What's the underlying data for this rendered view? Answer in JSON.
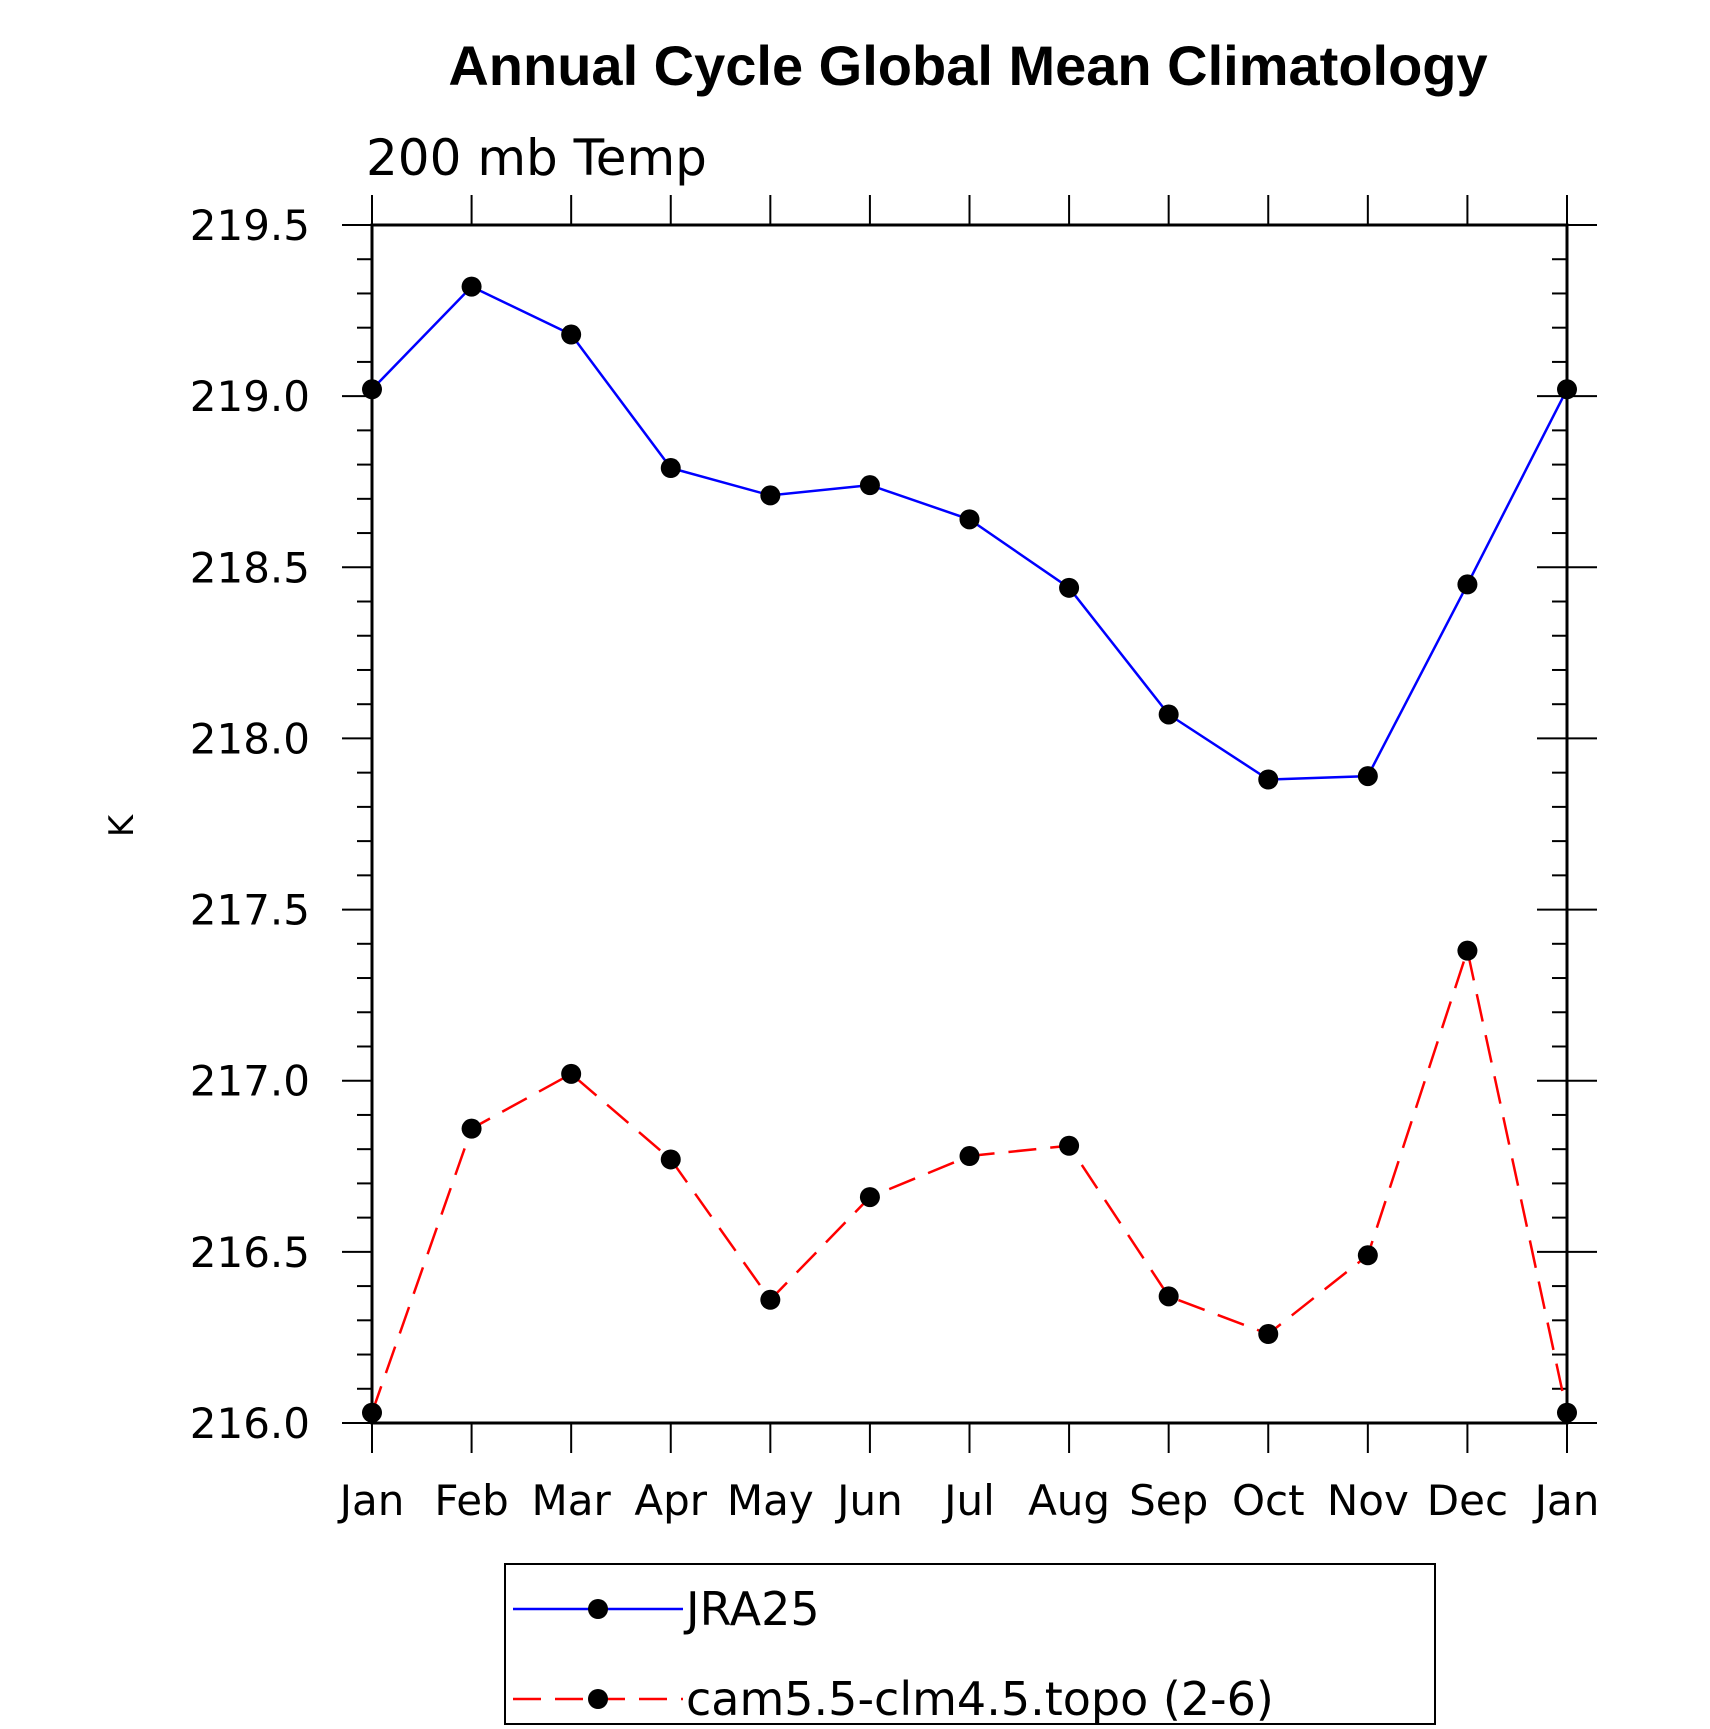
{
  "chart_data": {
    "type": "line",
    "title": "Annual Cycle Global Mean Climatology",
    "subtitle": "200 mb Temp",
    "xlabel": "",
    "ylabel": "K",
    "categories": [
      "Jan",
      "Feb",
      "Mar",
      "Apr",
      "May",
      "Jun",
      "Jul",
      "Aug",
      "Sep",
      "Oct",
      "Nov",
      "Dec",
      "Jan"
    ],
    "ylim": [
      216.0,
      219.5
    ],
    "yticks": [
      "216.0",
      "216.5",
      "217.0",
      "217.5",
      "218.0",
      "218.5",
      "219.0",
      "219.5"
    ],
    "grid": false,
    "legend_position": "bottom",
    "series": [
      {
        "name": "JRA25",
        "color": "#0000ff",
        "line_style": "solid",
        "marker": "filled-circle",
        "values": [
          219.02,
          219.32,
          219.18,
          218.79,
          218.71,
          218.74,
          218.64,
          218.44,
          218.07,
          217.88,
          217.89,
          218.45,
          219.02
        ]
      },
      {
        "name": "cam5.5-clm4.5.topo (2-6)",
        "color": "#ff0000",
        "line_style": "dashed",
        "marker": "filled-circle",
        "values": [
          216.03,
          216.86,
          217.02,
          216.77,
          216.36,
          216.66,
          216.78,
          216.81,
          216.37,
          216.26,
          216.49,
          217.38,
          216.03
        ]
      }
    ]
  }
}
